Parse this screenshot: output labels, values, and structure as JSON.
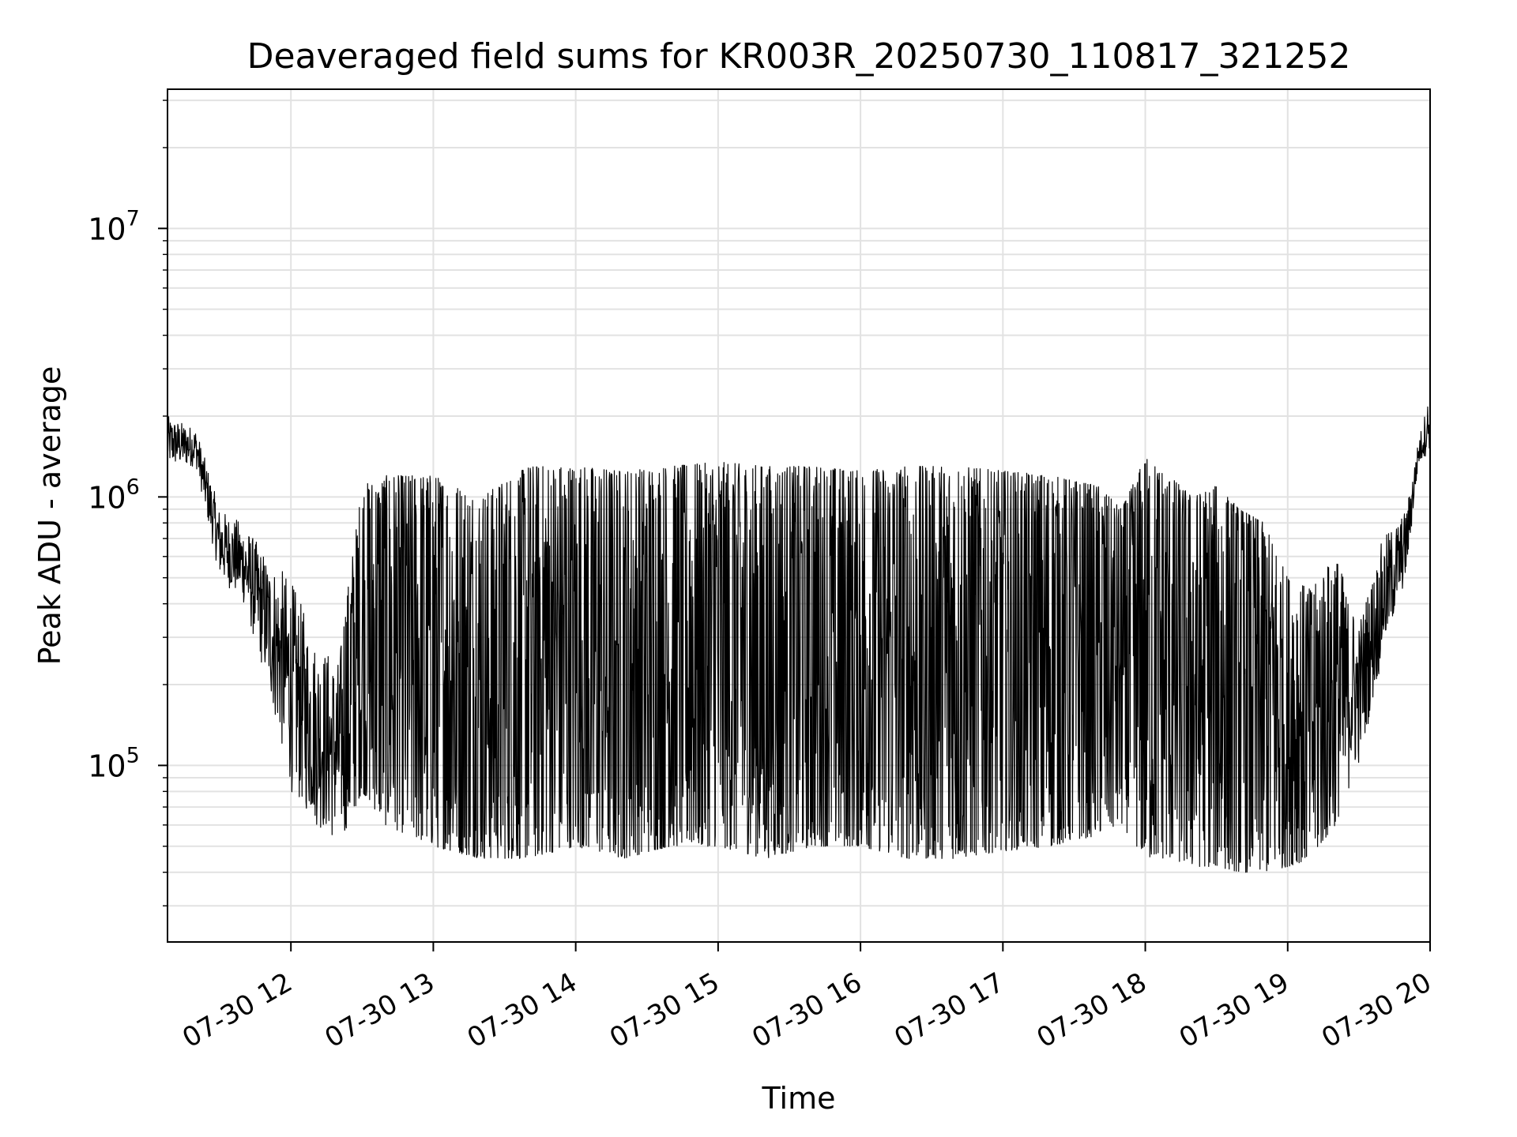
{
  "chart_data": {
    "type": "line",
    "title": "Deaveraged field sums for KR003R_20250730_110817_321252",
    "xlabel": "Time",
    "ylabel": "Peak ADU - average",
    "yscale": "log",
    "grid": true,
    "legend": "none",
    "x_range": [
      "2025-07-30 11:08",
      "2025-07-30 20:00"
    ],
    "ylim": [
      22000,
      33000000
    ],
    "x_tick_labels": [
      "07-30 12",
      "07-30 13",
      "07-30 14",
      "07-30 15",
      "07-30 16",
      "07-30 17",
      "07-30 18",
      "07-30 19",
      "07-30 20"
    ],
    "y_tick_labels": [
      {
        "base": "10",
        "exp": "5",
        "value": 100000
      },
      {
        "base": "10",
        "exp": "6",
        "value": 1000000
      },
      {
        "base": "10",
        "exp": "7",
        "value": 10000000
      }
    ],
    "series": [
      {
        "color": "#000000",
        "envelope": {
          "time": [
            "11:08",
            "11:20",
            "11:30",
            "11:40",
            "11:50",
            "12:00",
            "12:10",
            "12:20",
            "12:30",
            "12:40",
            "13:00",
            "13:20",
            "13:40",
            "14:00",
            "14:20",
            "14:40",
            "15:00",
            "15:20",
            "15:40",
            "16:00",
            "16:20",
            "16:40",
            "17:00",
            "17:20",
            "17:40",
            "17:50",
            "18:00",
            "18:10",
            "18:20",
            "18:30",
            "18:40",
            "18:50",
            "19:00",
            "19:10",
            "19:20",
            "19:30",
            "19:40",
            "19:50",
            "19:55",
            "20:00"
          ],
          "upper": [
            2000000,
            1800000,
            900000,
            800000,
            600000,
            500000,
            300000,
            250000,
            1100000,
            1200000,
            1200000,
            1000000,
            1300000,
            1300000,
            1250000,
            1300000,
            1350000,
            1300000,
            1300000,
            1250000,
            1300000,
            1300000,
            1250000,
            1200000,
            1100000,
            900000,
            1400000,
            1200000,
            1000000,
            1100000,
            900000,
            800000,
            500000,
            450000,
            600000,
            350000,
            700000,
            900000,
            1600000,
            2500000
          ],
          "lower": [
            1300000,
            1300000,
            500000,
            400000,
            200000,
            80000,
            60000,
            50000,
            80000,
            60000,
            50000,
            45000,
            45000,
            50000,
            45000,
            50000,
            50000,
            45000,
            50000,
            50000,
            45000,
            45000,
            48000,
            50000,
            55000,
            60000,
            45000,
            45000,
            42000,
            42000,
            40000,
            40000,
            42000,
            45000,
            60000,
            100000,
            250000,
            500000,
            1300000,
            1500000
          ]
        }
      }
    ]
  }
}
